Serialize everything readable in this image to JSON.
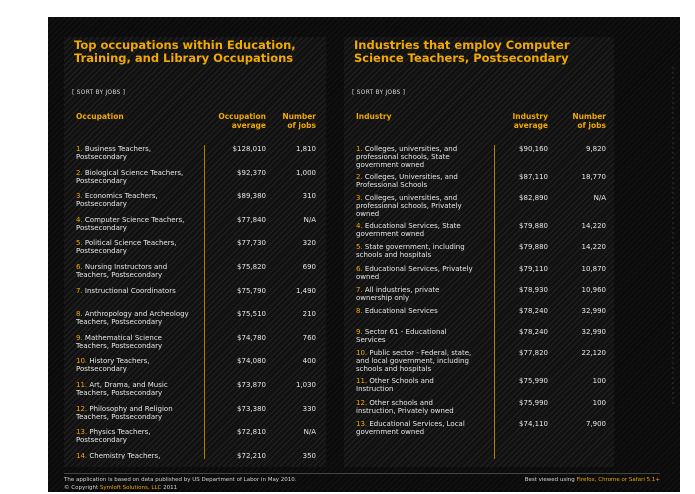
{
  "left": {
    "title": "Top occupations within Education, Training, and Library Occupations",
    "sort_label": "[ SORT BY JOBS ]",
    "col_occupation": "Occupation",
    "col_avg": "Occupation average",
    "col_jobs": "Number of jobs",
    "rows": [
      {
        "num": "1.",
        "name1": "Business Teachers,",
        "name2": "Postsecondary",
        "avg": "$128,010",
        "jobs": "1,810"
      },
      {
        "num": "2.",
        "name1": "Biological Science Teachers,",
        "name2": "Postsecondary",
        "avg": "$92,370",
        "jobs": "1,000"
      },
      {
        "num": "3.",
        "name1": "Economics Teachers,",
        "name2": "Postsecondary",
        "avg": "$89,380",
        "jobs": "310"
      },
      {
        "num": "4.",
        "name1": "Computer Science Teachers,",
        "name2": "Postsecondary",
        "avg": "$77,840",
        "jobs": "N/A"
      },
      {
        "num": "5.",
        "name1": "Political Science Teachers,",
        "name2": "Postsecondary",
        "avg": "$77,730",
        "jobs": "320"
      },
      {
        "num": "6.",
        "name1": "Nursing Instructors and",
        "name2": "Teachers, Postsecondary",
        "avg": "$75,820",
        "jobs": "690"
      },
      {
        "num": "7.",
        "name1": "Instructional Coordinators",
        "name2": "",
        "avg": "$75,790",
        "jobs": "1,490"
      },
      {
        "num": "8.",
        "name1": "Anthropology and Archeology",
        "name2": "Teachers, Postsecondary",
        "avg": "$75,510",
        "jobs": "210"
      },
      {
        "num": "9.",
        "name1": "Mathematical Science",
        "name2": "Teachers, Postsecondary",
        "avg": "$74,780",
        "jobs": "760"
      },
      {
        "num": "10.",
        "name1": "History Teachers,",
        "name2": "Postsecondary",
        "avg": "$74,080",
        "jobs": "400"
      },
      {
        "num": "11.",
        "name1": "Art, Drama, and Music",
        "name2": "Teachers, Postsecondary",
        "avg": "$73,870",
        "jobs": "1,030"
      },
      {
        "num": "12.",
        "name1": "Philosophy and Religion",
        "name2": "Teachers, Postsecondary",
        "avg": "$73,380",
        "jobs": "330"
      },
      {
        "num": "13.",
        "name1": "Physics Teachers,",
        "name2": "Postsecondary",
        "avg": "$72,810",
        "jobs": "N/A"
      },
      {
        "num": "14.",
        "name1": "Chemistry Teachers,",
        "name2": "",
        "avg": "$72,210",
        "jobs": "350"
      }
    ]
  },
  "right": {
    "title": "Industries that employ Computer Science Teachers, Postsecondary",
    "sort_label": "[ SORT BY JOBS ]",
    "col_industry": "Industry",
    "col_avg": "Industry average",
    "col_jobs": "Number of jobs",
    "rows": [
      {
        "num": "1.",
        "l1": "Colleges, universities, and",
        "l2": "professional schools, State",
        "l3": "government owned",
        "avg": "$90,160",
        "jobs": "9,820"
      },
      {
        "num": "2.",
        "l1": "Colleges, Universities, and",
        "l2": "Professional Schools",
        "l3": "",
        "avg": "$87,110",
        "jobs": "18,770"
      },
      {
        "num": "3.",
        "l1": "Colleges, universities, and",
        "l2": "professional schools, Privately",
        "l3": "owned",
        "avg": "$82,890",
        "jobs": "N/A"
      },
      {
        "num": "4.",
        "l1": "Educational Services, State",
        "l2": "government owned",
        "l3": "",
        "avg": "$79,880",
        "jobs": "14,220"
      },
      {
        "num": "5.",
        "l1": "State government, including",
        "l2": "schools and hospitals",
        "l3": "",
        "avg": "$79,880",
        "jobs": "14,220"
      },
      {
        "num": "6.",
        "l1": "Educational Services, Privately",
        "l2": "owned",
        "l3": "",
        "avg": "$79,110",
        "jobs": "10,870"
      },
      {
        "num": "7.",
        "l1": "All industries, private",
        "l2": "ownership only",
        "l3": "",
        "avg": "$78,930",
        "jobs": "10,960"
      },
      {
        "num": "8.",
        "l1": "Educational Services",
        "l2": "",
        "l3": "",
        "avg": "$78,240",
        "jobs": "32,990"
      },
      {
        "num": "9.",
        "l1": "Sector 61 - Educational",
        "l2": "Services",
        "l3": "",
        "avg": "$78,240",
        "jobs": "32,990"
      },
      {
        "num": "10.",
        "l1": "Public sector - Federal, state,",
        "l2": "and local government, including",
        "l3": "schools and hospitals",
        "avg": "$77,820",
        "jobs": "22,120"
      },
      {
        "num": "11.",
        "l1": "Other Schools and",
        "l2": "Instruction",
        "l3": "",
        "avg": "$75,990",
        "jobs": "100"
      },
      {
        "num": "12.",
        "l1": "Other schools and",
        "l2": "instruction, Privately owned",
        "l3": "",
        "avg": "$75,990",
        "jobs": "100"
      },
      {
        "num": "13.",
        "l1": "Educational Services, Local",
        "l2": "government owned",
        "l3": "",
        "avg": "$74,110",
        "jobs": "7,900"
      }
    ]
  },
  "footer": {
    "note": "The application is based on data published by US Department of Labor in May 2010.",
    "copyright_prefix": "© Copyright ",
    "copyright_company": "Symloft Solutions, LLC",
    "copyright_year": " 2011",
    "viewed_prefix": "Best viewed using ",
    "browsers": "Firefox, Chrome or Safari 5.1+"
  },
  "colors": {
    "accent": "#f2a900",
    "background": "#0b0b0b",
    "text": "#eaeaea"
  }
}
